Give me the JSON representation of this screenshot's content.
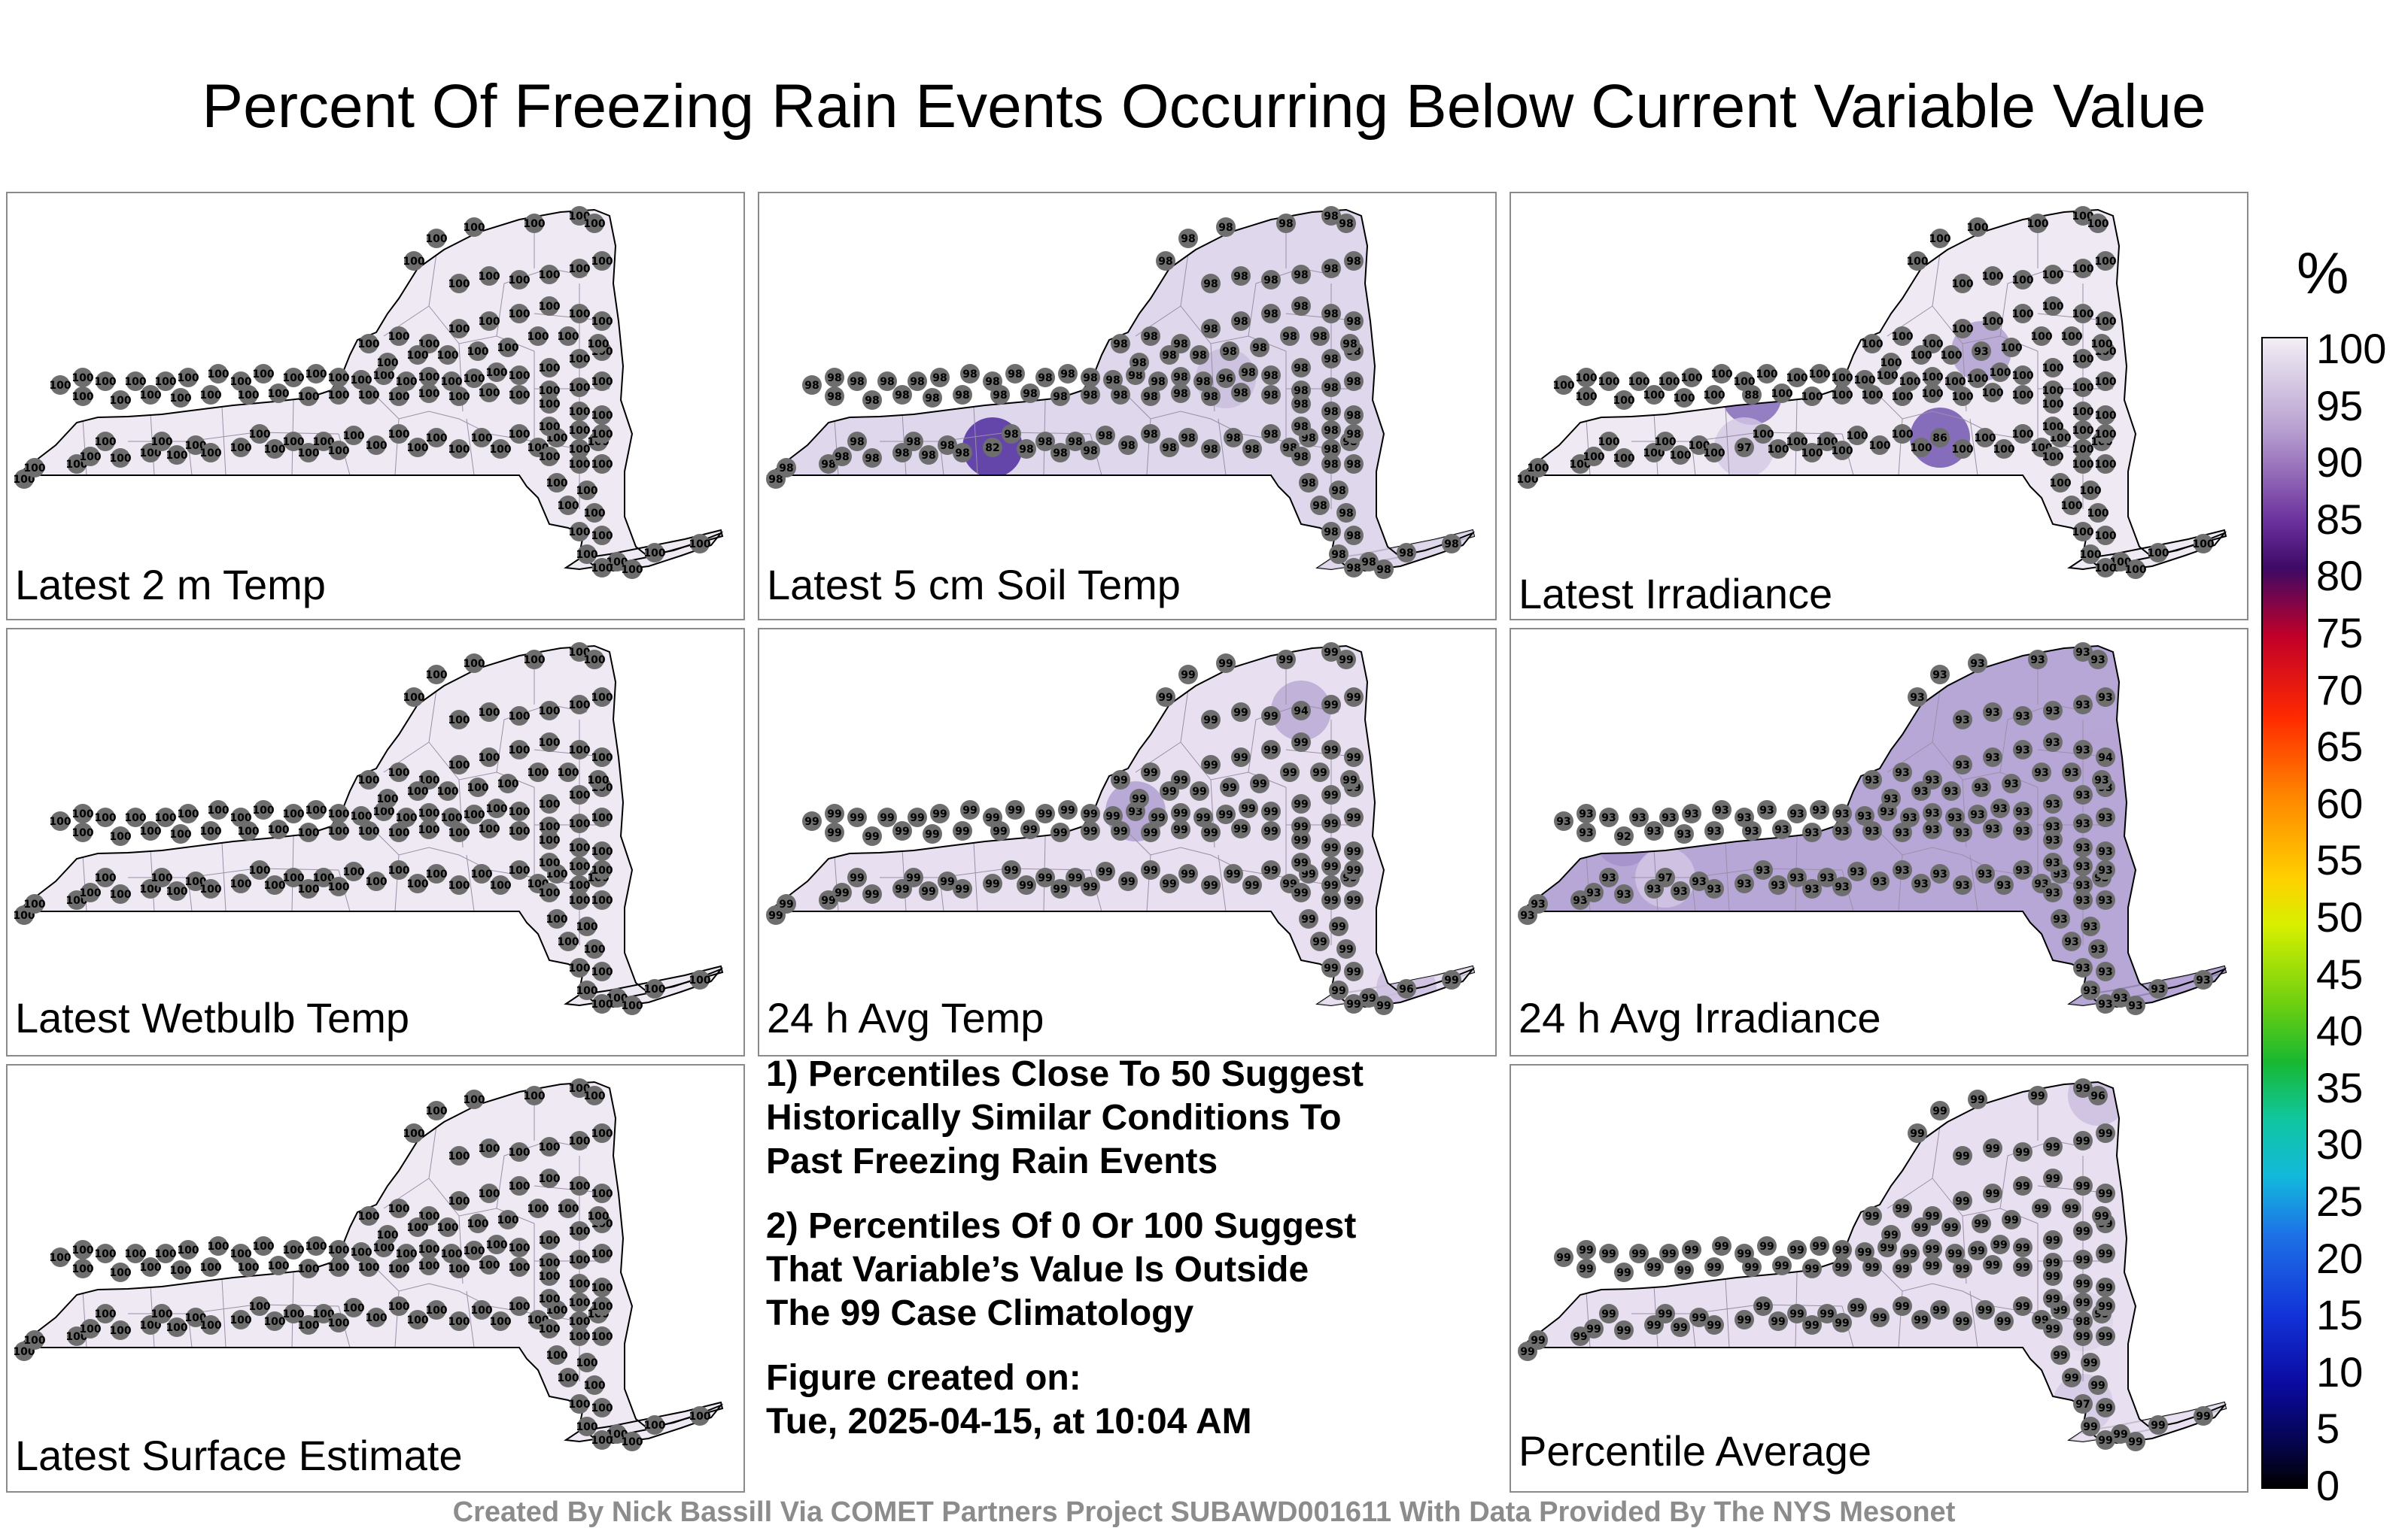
{
  "title": "Percent Of Freezing Rain Events Occurring Below Current Variable Value",
  "panels": [
    {
      "label": "Latest 2 m Temp",
      "base": 100,
      "hotspots": []
    },
    {
      "label": "Latest 5 cm Soil Temp",
      "base": 98,
      "hotspots": [
        {
          "value": 82
        },
        {
          "value": 96
        }
      ]
    },
    {
      "label": "Latest Irradiance",
      "base": 100,
      "hotspots": [
        {
          "value": 86
        },
        {
          "value": 88
        },
        {
          "value": 93
        },
        {
          "value": 97
        }
      ]
    },
    {
      "label": "Latest Wetbulb Temp",
      "base": 100,
      "hotspots": []
    },
    {
      "label": "24 h Avg Temp",
      "base": 99,
      "hotspots": [
        {
          "value": 93
        },
        {
          "value": 94
        },
        {
          "value": 96
        }
      ]
    },
    {
      "label": "24 h Avg Irradiance",
      "base": 93,
      "hotspots": [
        {
          "value": 92
        },
        {
          "value": 94
        },
        {
          "value": 97
        }
      ]
    },
    {
      "label": "Latest Surface Estimate",
      "base": 100,
      "hotspots": []
    },
    {
      "label": "Percentile Average",
      "base": 99,
      "hotspots": [
        {
          "value": 96
        },
        {
          "value": 97
        },
        {
          "value": 98
        }
      ]
    }
  ],
  "notes": {
    "note1_line1": "1) Percentiles Close To 50 Suggest",
    "note1_line2": "Historically Similar Conditions To",
    "note1_line3": "Past Freezing Rain Events",
    "note2_line1": "2) Percentiles Of 0 Or 100 Suggest",
    "note2_line2": "That Variable’s Value Is Outside",
    "note2_line3": "The 99 Case Climatology",
    "created_label": "Figure created on:",
    "created_value": "Tue, 2025-04-15, at 10:04 AM"
  },
  "colorbar": {
    "unit": "%",
    "ticks": [
      "100",
      "95",
      "90",
      "85",
      "80",
      "75",
      "70",
      "65",
      "60",
      "55",
      "50",
      "45",
      "40",
      "35",
      "30",
      "25",
      "20",
      "15",
      "10",
      "5",
      "0"
    ]
  },
  "footer": "Created By Nick Bassill Via COMET Partners Project SUBAWD001611 With Data Provided By The NYS Mesonet",
  "colors": {
    "map_fill": "#efe9f3",
    "station_marker": "#6e6e6e",
    "panel_border": "#8a8a8a",
    "footer_text": "#8c8c8c"
  }
}
